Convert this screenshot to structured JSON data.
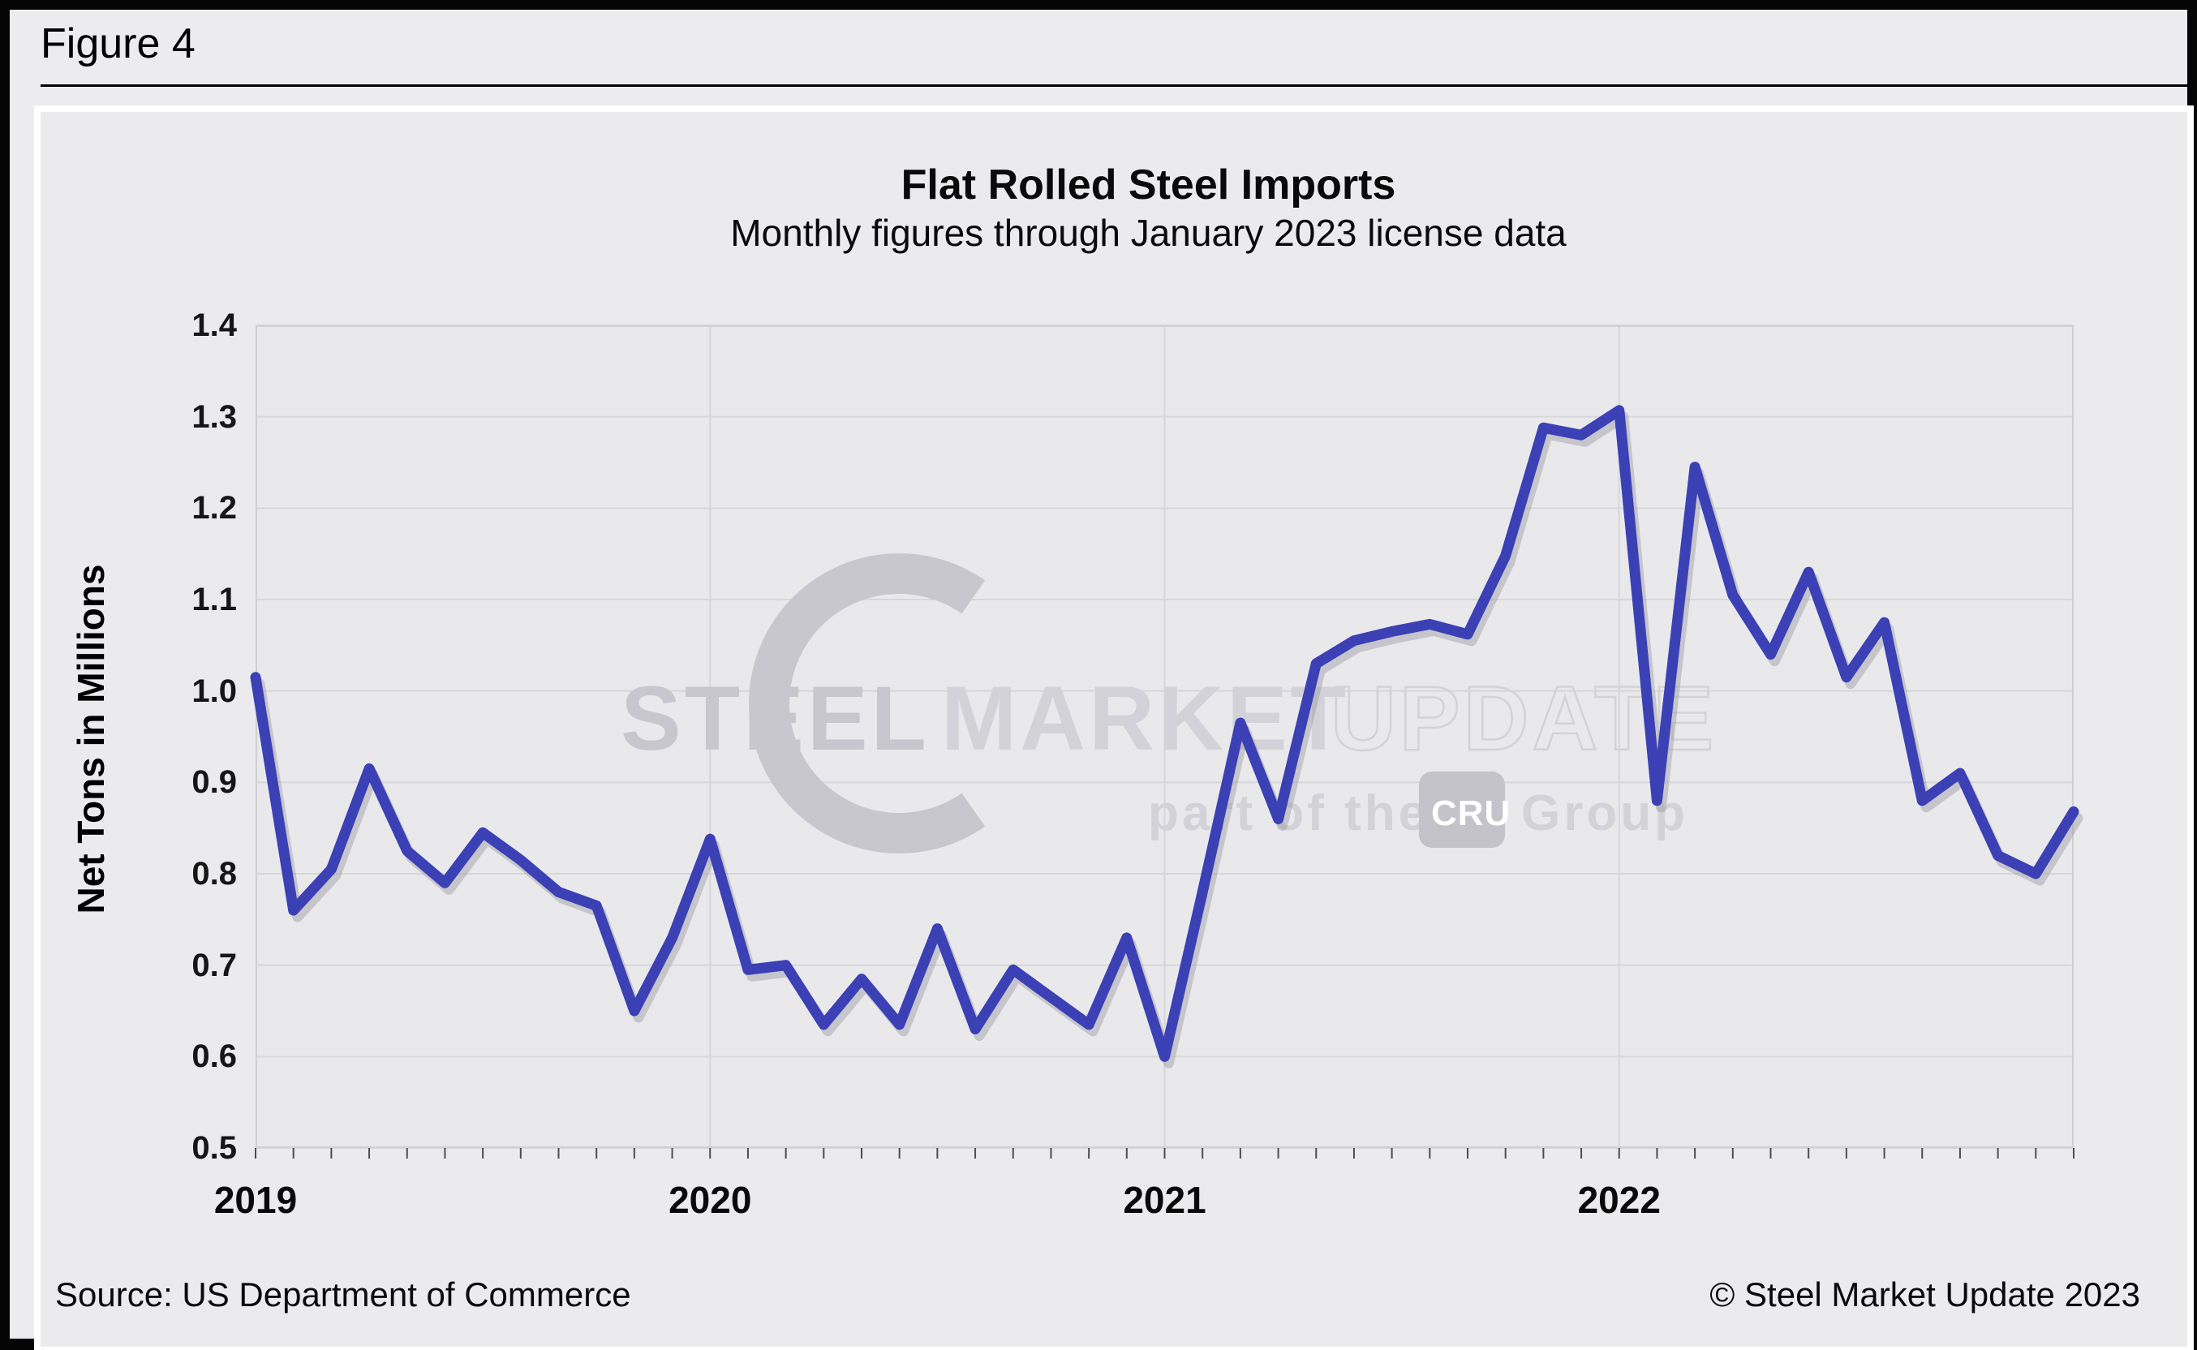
{
  "figure_label": "Figure 4",
  "chart": {
    "title": "Flat Rolled Steel Imports",
    "subtitle": "Monthly figures through January 2023 license data",
    "y_axis_title": "Net Tons in Millions",
    "source": "Source: US Department of Commerce",
    "copyright": "© Steel Market Update 2023"
  },
  "watermark": {
    "word1": "STEEL",
    "word2": "MARKET",
    "word3": "UPDATE",
    "tagline_prefix": "part of the",
    "logo_box": "CRU",
    "tagline_suffix": "Group"
  },
  "colors": {
    "line": "#3B40B5",
    "line_shadow": "#94949e",
    "plot_bg": "#e9e9ec",
    "panel_bg": "#ebebee",
    "grid": "#d7d7db",
    "plot_border": "#cfcfd4",
    "tick": "#4d4d4f",
    "watermark": "#c7c7cd",
    "watermark_light": "#d2d2d8",
    "watermark_box": "#c3c3c9"
  },
  "chart_data": {
    "type": "line",
    "title": "Flat Rolled Steel Imports",
    "subtitle": "Monthly figures through January 2023 license data",
    "xlabel": "",
    "ylabel": "Net Tons in Millions",
    "ylim": [
      0.5,
      1.4
    ],
    "y_tick_step": 0.1,
    "grid": true,
    "legend": false,
    "categories": [
      "Jan 2019",
      "Feb 2019",
      "Mar 2019",
      "Apr 2019",
      "May 2019",
      "Jun 2019",
      "Jul 2019",
      "Aug 2019",
      "Sep 2019",
      "Oct 2019",
      "Nov 2019",
      "Dec 2019",
      "Jan 2020",
      "Feb 2020",
      "Mar 2020",
      "Apr 2020",
      "May 2020",
      "Jun 2020",
      "Jul 2020",
      "Aug 2020",
      "Sep 2020",
      "Oct 2020",
      "Nov 2020",
      "Dec 2020",
      "Jan 2021",
      "Feb 2021",
      "Mar 2021",
      "Apr 2021",
      "May 2021",
      "Jun 2021",
      "Jul 2021",
      "Aug 2021",
      "Sep 2021",
      "Oct 2021",
      "Nov 2021",
      "Dec 2021",
      "Jan 2022",
      "Feb 2022",
      "Mar 2022",
      "Apr 2022",
      "May 2022",
      "Jun 2022",
      "Jul 2022",
      "Aug 2022",
      "Sep 2022",
      "Oct 2022",
      "Nov 2022",
      "Dec 2022",
      "Jan 2023"
    ],
    "values": [
      1.015,
      0.76,
      0.805,
      0.915,
      0.825,
      0.79,
      0.845,
      0.815,
      0.78,
      0.765,
      0.65,
      0.73,
      0.838,
      0.695,
      0.7,
      0.635,
      0.685,
      0.635,
      0.74,
      0.63,
      0.695,
      0.665,
      0.635,
      0.73,
      0.6,
      0.78,
      0.965,
      0.86,
      1.03,
      1.055,
      1.065,
      1.073,
      1.062,
      1.148,
      1.288,
      1.28,
      1.307,
      0.88,
      1.245,
      1.105,
      1.04,
      1.13,
      1.015,
      1.075,
      0.88,
      0.91,
      0.82,
      0.8,
      0.868
    ],
    "x_tick_labels": [
      "2019",
      "2020",
      "2021",
      "2022"
    ],
    "x_tick_month_positions": [
      0,
      12,
      24,
      36
    ]
  }
}
